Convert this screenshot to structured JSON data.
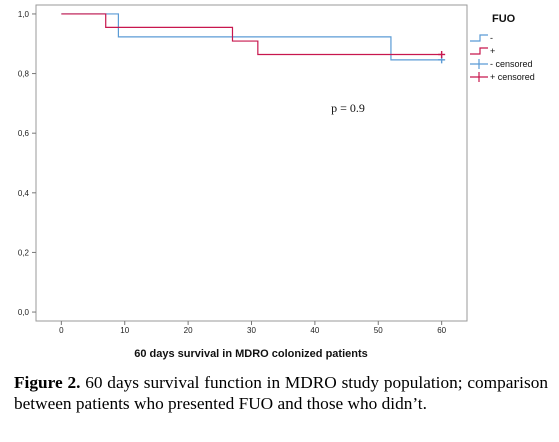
{
  "chart_data": {
    "type": "line",
    "subtype": "kaplan-meier step",
    "xlabel": "60 days survival in MDRO colonized patients",
    "ylabel": "",
    "xlim": [
      -4,
      64
    ],
    "ylim": [
      -0.03,
      1.03
    ],
    "x_ticks": [
      0,
      10,
      20,
      30,
      40,
      50,
      60
    ],
    "y_ticks": [
      0.0,
      0.2,
      0.4,
      0.6,
      0.8,
      1.0
    ],
    "y_tick_labels": [
      "0,0",
      "0,2",
      "0,4",
      "0,6",
      "0,8",
      "1,0"
    ],
    "grid": false,
    "legend": {
      "title": "FUO",
      "position": "top-right",
      "entries": [
        "-",
        "+",
        "- censored",
        "+ censored"
      ]
    },
    "annotation": "p = 0.9",
    "series": [
      {
        "name": "-",
        "color": "#5b9bd5",
        "steps": [
          [
            0,
            1.0
          ],
          [
            9,
            0.923
          ],
          [
            52,
            0.846
          ],
          [
            60,
            0.846
          ]
        ],
        "censored": [
          [
            60,
            0.846
          ]
        ]
      },
      {
        "name": "+",
        "color": "#c8174e",
        "steps": [
          [
            0,
            1.0
          ],
          [
            7,
            0.955
          ],
          [
            27,
            0.909
          ],
          [
            31,
            0.864
          ],
          [
            60,
            0.864
          ]
        ],
        "censored": [
          [
            60,
            0.864
          ]
        ]
      }
    ]
  },
  "caption": {
    "label": "Figure 2.",
    "text": " 60 days survival function in MDRO study population; comparison between patients who presented FUO and those who didn’t."
  }
}
